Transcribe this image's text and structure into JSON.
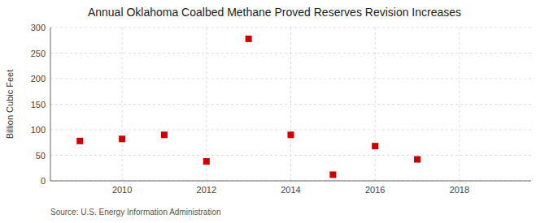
{
  "chart_data": {
    "type": "scatter",
    "title": "Annual Oklahoma Coalbed Methane Proved Reserves Revision Increases",
    "ylabel": "Billion Cubic Feet",
    "source": "Source: U.S. Energy Information Administration",
    "x": [
      2009,
      2010,
      2011,
      2012,
      2013,
      2014,
      2015,
      2016,
      2017
    ],
    "values": [
      78,
      82,
      90,
      38,
      278,
      90,
      12,
      68,
      42
    ],
    "xlim": [
      2008.3,
      2019.7
    ],
    "ylim": [
      0,
      300
    ],
    "xticks": [
      2010,
      2012,
      2014,
      2016,
      2018
    ],
    "yticks": [
      0,
      50,
      100,
      150,
      200,
      250,
      300
    ],
    "color": "#cc0000",
    "marker": "square",
    "grid": true
  }
}
